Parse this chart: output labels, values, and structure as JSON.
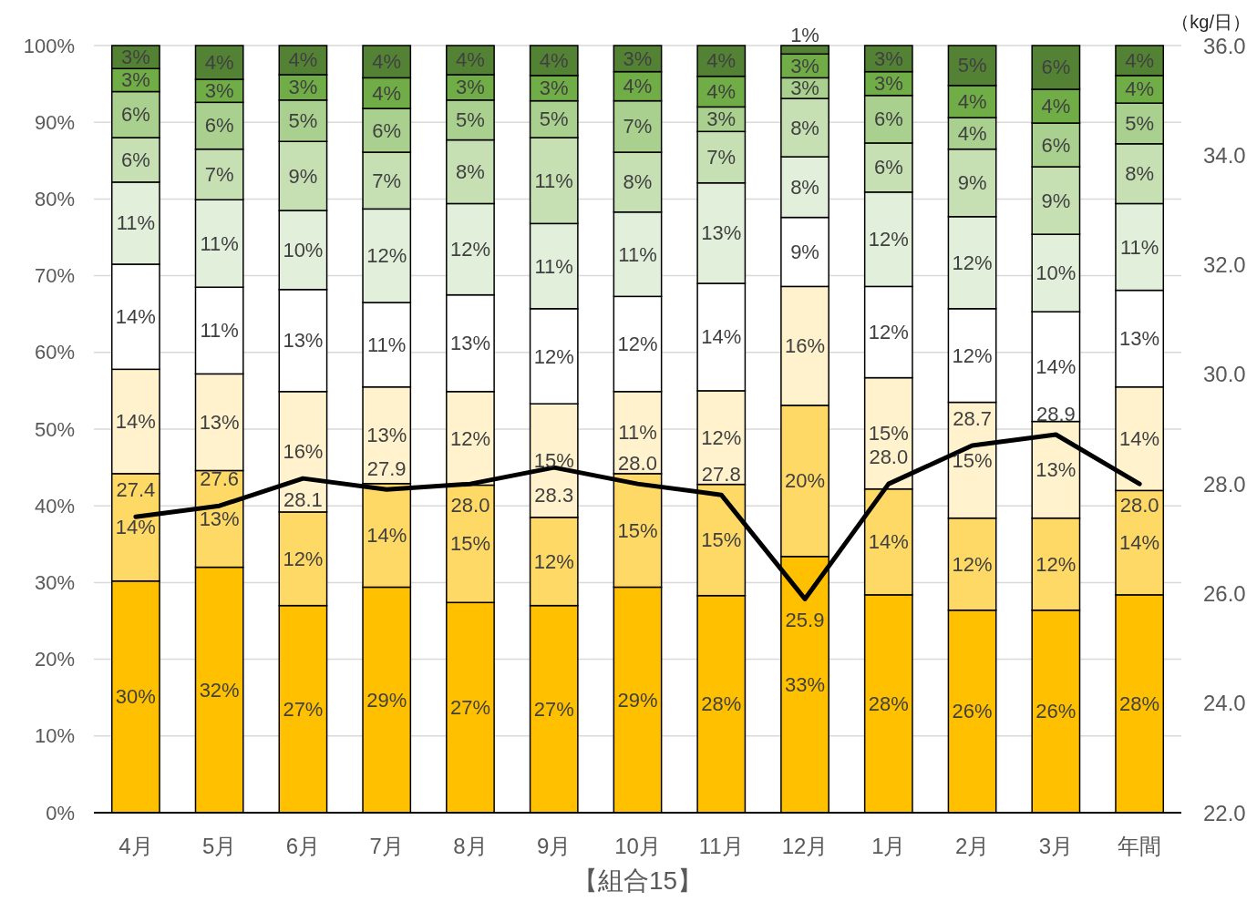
{
  "chart_data": {
    "type": "bar",
    "stacked": true,
    "xlabel": "【組合15】",
    "y2label": "（kg/日）",
    "categories": [
      "4月",
      "5月",
      "6月",
      "7月",
      "8月",
      "9月",
      "10月",
      "11月",
      "12月",
      "1月",
      "2月",
      "3月",
      "年間"
    ],
    "ylim": [
      0,
      100
    ],
    "yticks": [
      {
        "value": 0,
        "label": "0%"
      },
      {
        "value": 10,
        "label": "10%"
      },
      {
        "value": 20,
        "label": "20%"
      },
      {
        "value": 30,
        "label": "30%"
      },
      {
        "value": 40,
        "label": "40%"
      },
      {
        "value": 50,
        "label": "50%"
      },
      {
        "value": 60,
        "label": "60%"
      },
      {
        "value": 70,
        "label": "70%"
      },
      {
        "value": 80,
        "label": "80%"
      },
      {
        "value": 90,
        "label": "90%"
      },
      {
        "value": 100,
        "label": "100%"
      }
    ],
    "y2lim": [
      22,
      36
    ],
    "y2ticks": [
      {
        "value": 22,
        "label": "22.0"
      },
      {
        "value": 24,
        "label": "24.0"
      },
      {
        "value": 26,
        "label": "26.0"
      },
      {
        "value": 28,
        "label": "28.0"
      },
      {
        "value": 30,
        "label": "30.0"
      },
      {
        "value": 32,
        "label": "32.0"
      },
      {
        "value": 34,
        "label": "34.0"
      },
      {
        "value": 36,
        "label": "36.0"
      }
    ],
    "grid": "y",
    "series": [
      {
        "color": "#ffc000",
        "values": [
          30.2,
          32.0,
          27.0,
          29.4,
          27.4,
          27.0,
          29.4,
          28.3,
          33.4,
          28.4,
          26.4,
          26.4,
          28.4
        ],
        "value_labels": [
          "30%",
          "32%",
          "27%",
          "29%",
          "27%",
          "27%",
          "29%",
          "28%",
          "33%",
          "28%",
          "26%",
          "26%",
          "28%"
        ]
      },
      {
        "color": "#ffd966",
        "values": [
          14.0,
          12.6,
          12.2,
          13.5,
          15.3,
          11.5,
          14.8,
          14.5,
          19.7,
          13.8,
          12.0,
          12.0,
          13.6
        ],
        "value_labels": [
          "14%",
          "13%",
          "12%",
          "14%",
          "15%",
          "12%",
          "15%",
          "15%",
          "20%",
          "14%",
          "12%",
          "12%",
          "14%"
        ]
      },
      {
        "color": "#fff2cc",
        "values": [
          13.6,
          12.6,
          15.7,
          12.6,
          12.2,
          14.8,
          10.7,
          12.2,
          15.5,
          14.5,
          15.1,
          12.6,
          13.5
        ],
        "value_labels": [
          "14%",
          "13%",
          "16%",
          "13%",
          "12%",
          "15%",
          "11%",
          "12%",
          "16%",
          "15%",
          "15%",
          "13%",
          "14%"
        ]
      },
      {
        "color": "#ffffff",
        "values": [
          13.7,
          11.3,
          13.3,
          11.0,
          12.6,
          12.4,
          12.4,
          14.0,
          9.0,
          11.9,
          12.2,
          14.3,
          12.6
        ],
        "value_labels": [
          "14%",
          "11%",
          "13%",
          "11%",
          "13%",
          "12%",
          "12%",
          "14%",
          "9%",
          "12%",
          "12%",
          "14%",
          "13%"
        ]
      },
      {
        "color": "#e2efda",
        "values": [
          10.7,
          11.4,
          10.3,
          12.2,
          11.9,
          11.1,
          11.0,
          13.1,
          7.9,
          12.3,
          12.0,
          10.1,
          11.3
        ],
        "value_labels": [
          "11%",
          "11%",
          "10%",
          "12%",
          "12%",
          "11%",
          "11%",
          "13%",
          "8%",
          "12%",
          "12%",
          "10%",
          "11%"
        ]
      },
      {
        "color": "#c6e0b4",
        "values": [
          5.8,
          6.6,
          9.0,
          7.4,
          8.3,
          11.2,
          7.8,
          6.7,
          7.6,
          6.4,
          8.8,
          8.8,
          7.8
        ],
        "value_labels": [
          "6%",
          "7%",
          "9%",
          "7%",
          "8%",
          "11%",
          "8%",
          "7%",
          "8%",
          "6%",
          "9%",
          "9%",
          "8%"
        ]
      },
      {
        "color": "#a9d08e",
        "values": [
          6.0,
          6.1,
          5.4,
          5.7,
          5.2,
          4.8,
          6.7,
          3.2,
          2.7,
          6.2,
          4.1,
          5.7,
          5.3
        ],
        "value_labels": [
          "6%",
          "6%",
          "5%",
          "6%",
          "5%",
          "5%",
          "7%",
          "3%",
          "3%",
          "6%",
          "4%",
          "6%",
          "5%"
        ]
      },
      {
        "color": "#70ad47",
        "values": [
          3.0,
          3.0,
          3.3,
          4.0,
          3.3,
          3.3,
          3.8,
          4.0,
          3.1,
          3.1,
          4.2,
          4.4,
          3.6
        ],
        "value_labels": [
          "3%",
          "3%",
          "3%",
          "4%",
          "3%",
          "3%",
          "4%",
          "4%",
          "3%",
          "3%",
          "4%",
          "4%",
          "4%"
        ]
      },
      {
        "color": "#548235",
        "values": [
          3.0,
          4.4,
          3.8,
          4.2,
          3.8,
          3.9,
          3.4,
          4.0,
          1.1,
          3.4,
          5.2,
          5.7,
          3.9
        ],
        "value_labels": [
          "3%",
          "4%",
          "4%",
          "4%",
          "4%",
          "4%",
          "3%",
          "4%",
          "1%",
          "3%",
          "5%",
          "6%",
          "4%"
        ]
      },
      {
        "type": "line",
        "axis": "y2",
        "color": "#000000",
        "values": [
          27.4,
          27.6,
          28.1,
          27.9,
          28.0,
          28.3,
          28.0,
          27.8,
          25.9,
          28.0,
          28.7,
          28.9,
          28.0
        ],
        "value_labels": [
          "27.4",
          "27.6",
          "28.1",
          "27.9",
          "28.0",
          "28.3",
          "28.0",
          "27.8",
          "25.9",
          "28.0",
          "28.7",
          "28.9",
          "28.0"
        ]
      }
    ]
  }
}
